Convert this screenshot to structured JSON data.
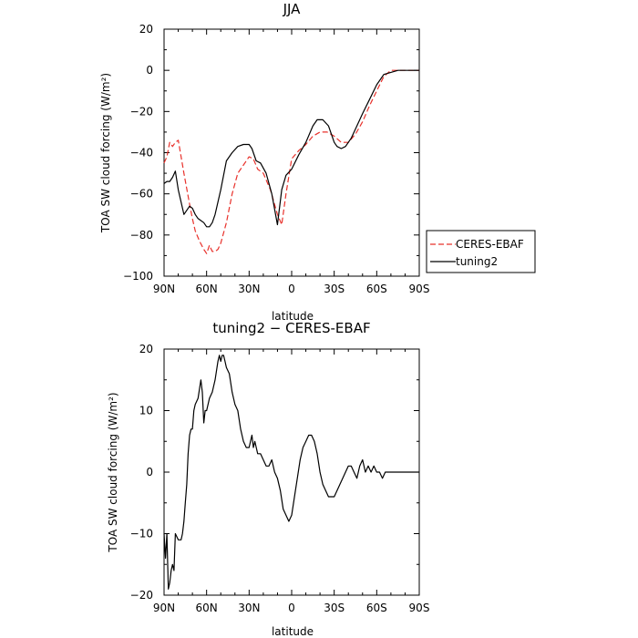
{
  "chart_data": [
    {
      "type": "line",
      "title": "JJA",
      "xlabel": "latitude",
      "ylabel": "TOA SW cloud forcing (W/m²)",
      "xlim": [
        90,
        -90
      ],
      "ylim": [
        -100,
        20
      ],
      "xticks": [
        90,
        60,
        30,
        0,
        -30,
        -60,
        -90
      ],
      "xtick_labels": [
        "90N",
        "60N",
        "30N",
        "0",
        "30S",
        "60S",
        "90S"
      ],
      "yticks": [
        -100,
        -80,
        -60,
        -40,
        -20,
        0,
        20
      ],
      "ytick_labels": [
        "−100",
        "−80",
        "−60",
        "−40",
        "−20",
        "0",
        "20"
      ],
      "legend": "right",
      "colors": {
        "CERES-EBAF": "#e8312b",
        "tuning2": "#000000"
      },
      "series": [
        {
          "name": "CERES-EBAF",
          "style": "dashed",
          "x": [
            90,
            88,
            86,
            84,
            82,
            80,
            76,
            72,
            70,
            68,
            65,
            62,
            60,
            58,
            56,
            54,
            52,
            50,
            46,
            42,
            38,
            34,
            30,
            27,
            24,
            20,
            15,
            10,
            7,
            4,
            0,
            -5,
            -10,
            -15,
            -20,
            -25,
            -30,
            -35,
            -40,
            -45,
            -50,
            -55,
            -60,
            -65,
            -70,
            -75,
            -80,
            -85,
            -90
          ],
          "y": [
            -45,
            -42,
            -35,
            -37,
            -35,
            -34,
            -50,
            -65,
            -72,
            -78,
            -83,
            -87,
            -89,
            -85,
            -88,
            -88,
            -87,
            -84,
            -74,
            -60,
            -50,
            -46,
            -42,
            -43,
            -48,
            -50,
            -58,
            -70,
            -75,
            -60,
            -43,
            -39,
            -36,
            -32,
            -30,
            -30,
            -32,
            -35,
            -35,
            -31,
            -25,
            -17,
            -10,
            -3,
            0,
            0,
            0,
            0,
            0
          ]
        },
        {
          "name": "tuning2",
          "style": "solid",
          "x": [
            90,
            88,
            86,
            84,
            82,
            80,
            76,
            72,
            70,
            68,
            66,
            64,
            62,
            60,
            58,
            56,
            54,
            50,
            46,
            42,
            38,
            34,
            30,
            28,
            25,
            22,
            18,
            14,
            10,
            7,
            4,
            0,
            -5,
            -10,
            -15,
            -18,
            -22,
            -26,
            -30,
            -32,
            -35,
            -38,
            -42,
            -46,
            -50,
            -55,
            -60,
            -65,
            -70,
            -75,
            -80,
            -85,
            -90
          ],
          "y": [
            -55,
            -54,
            -54,
            -52,
            -49,
            -58,
            -70,
            -66,
            -67,
            -70,
            -72,
            -73,
            -74,
            -76,
            -76,
            -74,
            -70,
            -58,
            -44,
            -40,
            -37,
            -36,
            -36,
            -38,
            -44,
            -45,
            -50,
            -60,
            -75,
            -58,
            -51,
            -48,
            -41,
            -35,
            -27,
            -24,
            -24,
            -27,
            -35,
            -37,
            -38,
            -37,
            -33,
            -27,
            -21,
            -14,
            -7,
            -2,
            -1,
            0,
            0,
            0,
            0
          ]
        }
      ]
    },
    {
      "type": "line",
      "title": "tuning2 − CERES-EBAF",
      "xlabel": "latitude",
      "ylabel": "TOA SW cloud forcing (W/m²)",
      "xlim": [
        90,
        -90
      ],
      "ylim": [
        -20,
        20
      ],
      "xticks": [
        90,
        60,
        30,
        0,
        -30,
        -60,
        -90
      ],
      "xtick_labels": [
        "90N",
        "60N",
        "30N",
        "0",
        "30S",
        "60S",
        "90S"
      ],
      "yticks": [
        -20,
        -10,
        0,
        10,
        20
      ],
      "ytick_labels": [
        "−20",
        "−10",
        "0",
        "10",
        "20"
      ],
      "series": [
        {
          "style": "solid",
          "x": [
            90,
            89,
            88,
            87,
            86,
            85,
            84,
            83,
            82,
            80,
            78,
            77,
            76,
            75,
            74,
            73,
            72,
            71,
            70,
            69,
            68,
            66,
            64,
            63,
            62,
            61,
            60,
            58,
            56,
            54,
            52,
            51,
            50,
            49,
            48,
            47,
            46,
            44,
            42,
            40,
            38,
            36,
            34,
            32,
            30,
            28,
            27,
            26,
            24,
            22,
            20,
            18,
            16,
            14,
            12,
            10,
            8,
            6,
            4,
            2,
            0,
            -2,
            -4,
            -6,
            -8,
            -10,
            -12,
            -14,
            -16,
            -18,
            -20,
            -22,
            -24,
            -26,
            -28,
            -30,
            -32,
            -34,
            -36,
            -38,
            -40,
            -42,
            -44,
            -46,
            -48,
            -50,
            -52,
            -54,
            -56,
            -58,
            -60,
            -62,
            -64,
            -66,
            -68,
            -70,
            -72,
            -74,
            -76,
            -78,
            -80,
            -82,
            -84,
            -86,
            -88,
            -90
          ],
          "y": [
            -10,
            -14,
            -10,
            -19,
            -18,
            -16,
            -15,
            -16,
            -10,
            -11,
            -11,
            -10,
            -8,
            -5,
            -2,
            3,
            6,
            7,
            7,
            10,
            11,
            12,
            15,
            13,
            8,
            10,
            10,
            12,
            13,
            15,
            18,
            19,
            18,
            19,
            19,
            18,
            17,
            16,
            13,
            11,
            10,
            7,
            5,
            4,
            4,
            6,
            4,
            5,
            3,
            3,
            2,
            1,
            1,
            2,
            0,
            -1,
            -3,
            -6,
            -7,
            -8,
            -7,
            -4,
            -1,
            2,
            4,
            5,
            6,
            6,
            5,
            3,
            0,
            -2,
            -3,
            -4,
            -4,
            -4,
            -3,
            -2,
            -1,
            0,
            1,
            1,
            0,
            -1,
            1,
            2,
            0,
            1,
            0,
            1,
            0,
            0,
            -1,
            0,
            0,
            0,
            0,
            0,
            0,
            0,
            0,
            0,
            0,
            0,
            0,
            0
          ]
        }
      ]
    }
  ]
}
